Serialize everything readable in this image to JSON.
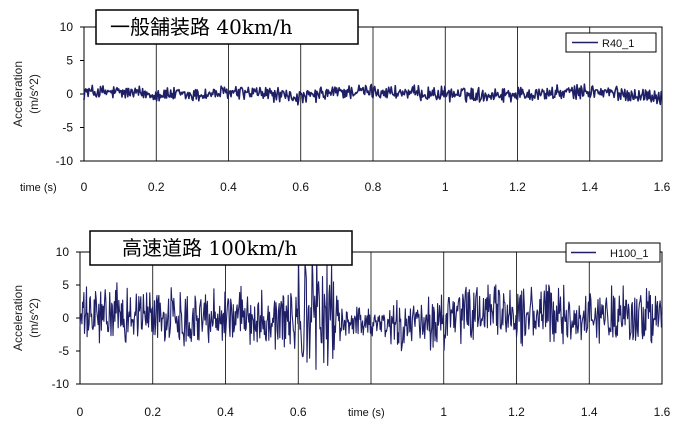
{
  "chart_data": [
    {
      "type": "line",
      "title_prefix": "一般舗装路",
      "title_suffix": " 40km/h",
      "ylabel": "Acceleration",
      "ylabel_unit": "(m/s^2)",
      "xlabel": "time (s)",
      "xlim": [
        0,
        1.6
      ],
      "ylim": [
        -10,
        10
      ],
      "x_ticks": [
        "0",
        "0.2",
        "0.4",
        "0.6",
        "0.8",
        "1",
        "1.2",
        "1.4",
        "1.6"
      ],
      "y_ticks": [
        "10",
        "5",
        "0",
        "-5",
        "-10"
      ],
      "grid": "vertical",
      "legend_position": "top-right",
      "series": [
        {
          "name": "R40_1",
          "color": "#1f1f66",
          "amplitude": 0.9,
          "x": [
            0,
            0.1,
            0.2,
            0.3,
            0.4,
            0.5,
            0.6,
            0.7,
            0.8,
            0.9,
            1.0,
            1.1,
            1.2,
            1.3,
            1.4,
            1.5,
            1.6
          ],
          "y": [
            0.3,
            0.2,
            0.0,
            -0.2,
            0.2,
            0.1,
            -0.6,
            0.3,
            0.4,
            0.1,
            0.0,
            -0.1,
            0.0,
            0.1,
            0.4,
            0.0,
            -0.4
          ]
        }
      ]
    },
    {
      "type": "line",
      "title_prefix": "高速道路",
      "title_suffix": " 100km/h",
      "ylabel": "Acceleration",
      "ylabel_unit": "(m/s^2)",
      "xlabel": "time (s)",
      "xlim": [
        0,
        1.6
      ],
      "ylim": [
        -10,
        10
      ],
      "x_ticks": [
        "0",
        "0.2",
        "0.4",
        "0.6",
        "0.8",
        "1",
        "1.2",
        "1.4",
        "1.6"
      ],
      "y_ticks": [
        "10",
        "5",
        "0",
        "-5",
        "-10"
      ],
      "grid": "vertical",
      "legend_position": "top-right",
      "series": [
        {
          "name": "H100_1",
          "color": "#1f1f66",
          "amplitude": 3.5,
          "x": [
            0,
            0.1,
            0.2,
            0.3,
            0.4,
            0.5,
            0.6,
            0.65,
            0.7,
            0.8,
            0.9,
            1.0,
            1.1,
            1.2,
            1.3,
            1.4,
            1.5,
            1.6
          ],
          "y": [
            0.0,
            0.5,
            0.5,
            0.0,
            0.5,
            0.0,
            -0.5,
            1.0,
            -0.5,
            -0.5,
            -1.5,
            -0.5,
            1.0,
            0.5,
            0.5,
            0.0,
            0.5,
            0.0
          ]
        }
      ]
    }
  ]
}
